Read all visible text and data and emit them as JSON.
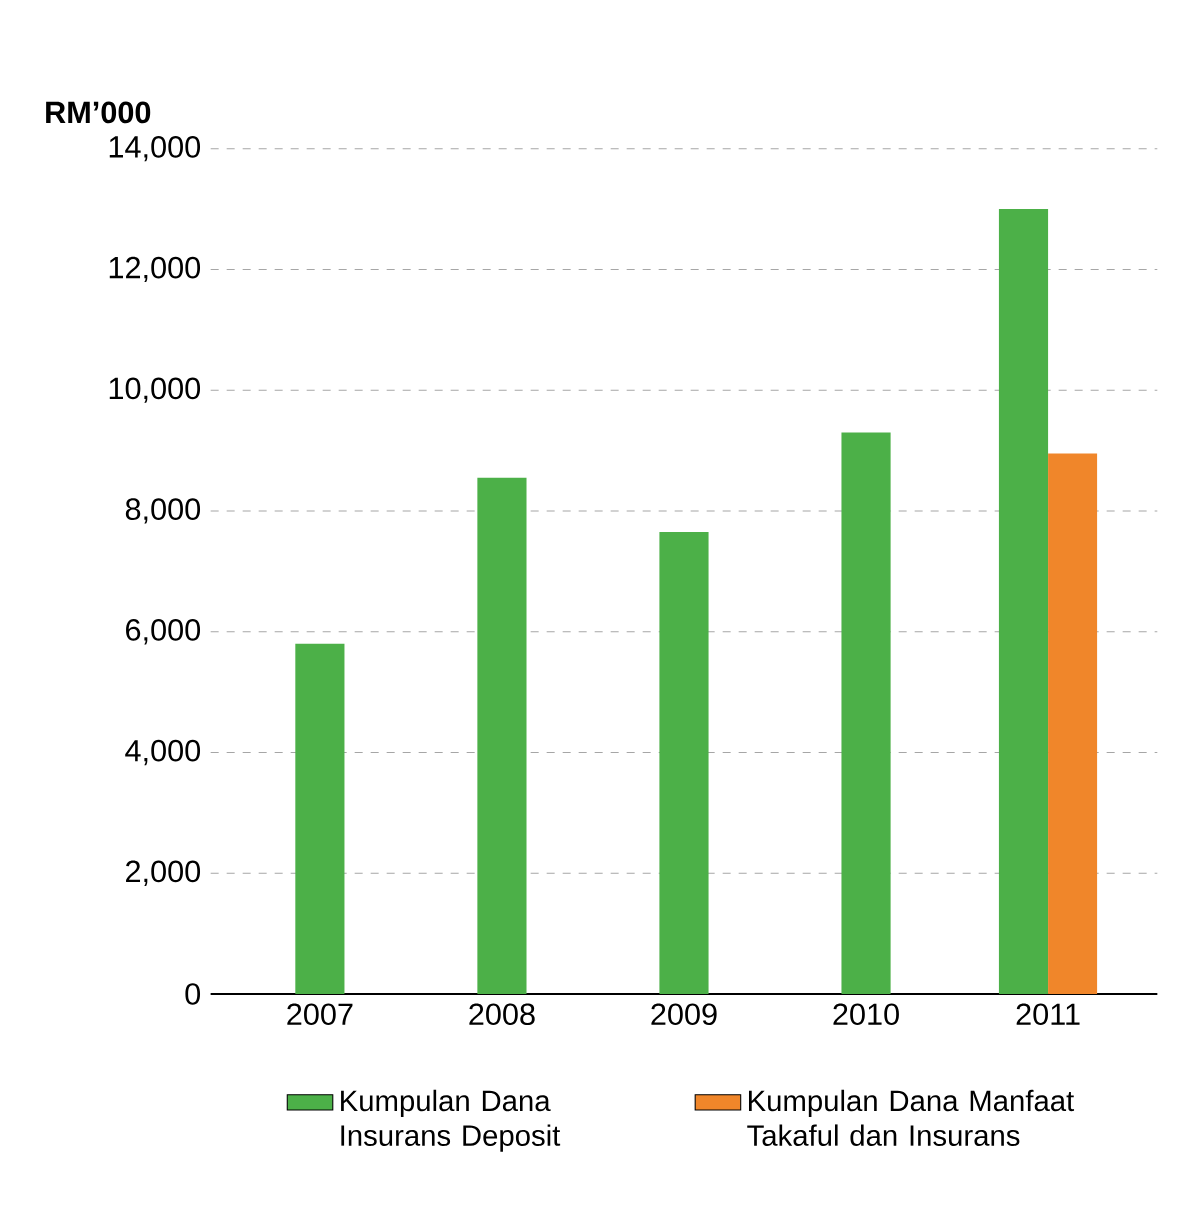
{
  "chart_data": {
    "type": "bar",
    "ylabel": "RM’000",
    "categories": [
      "2007",
      "2008",
      "2009",
      "2010",
      "2011"
    ],
    "series": [
      {
        "name": "Kumpulan Dana Insurans Deposit",
        "color": "#4cb048",
        "values": [
          5800,
          8550,
          7650,
          9300,
          13000
        ]
      },
      {
        "name": "Kumpulan Dana Manfaat Takaful dan Insurans",
        "color": "#f0862a",
        "values": [
          null,
          null,
          null,
          null,
          8950
        ]
      }
    ],
    "ylim": [
      0,
      14000
    ],
    "yticks": [
      0,
      {
        "value": 2000,
        "label": "2,000"
      },
      {
        "value": 4000,
        "label": "4,000"
      },
      {
        "value": 6000,
        "label": "6,000"
      },
      {
        "value": 8000,
        "label": "8,000"
      },
      {
        "value": 10000,
        "label": "10,000"
      },
      {
        "value": 12000,
        "label": "12,000"
      },
      {
        "value": 14000,
        "label": "14,000"
      }
    ],
    "grid": "y",
    "legend": "bottom"
  }
}
